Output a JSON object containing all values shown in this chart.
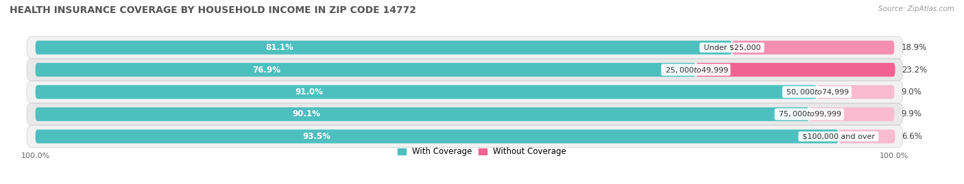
{
  "title": "HEALTH INSURANCE COVERAGE BY HOUSEHOLD INCOME IN ZIP CODE 14772",
  "source": "Source: ZipAtlas.com",
  "categories": [
    "Under $25,000",
    "$25,000 to $49,999",
    "$50,000 to $74,999",
    "$75,000 to $99,999",
    "$100,000 and over"
  ],
  "with_coverage": [
    81.1,
    76.9,
    91.0,
    90.1,
    93.5
  ],
  "without_coverage": [
    18.9,
    23.2,
    9.0,
    9.9,
    6.6
  ],
  "color_with": "#4dbfbf",
  "color_without_strong": "#f06292",
  "color_without_light": "#f8bbd0",
  "color_with_dark": "#3ab0b0",
  "bar_height": 0.62,
  "title_fontsize": 10,
  "label_fontsize": 8.5,
  "category_fontsize": 8,
  "legend_fontsize": 8.5,
  "axis_label_fontsize": 8,
  "background_color": "#ffffff",
  "row_bg_even": "#f2f2f2",
  "row_bg_odd": "#e8e8e8",
  "total": 100
}
